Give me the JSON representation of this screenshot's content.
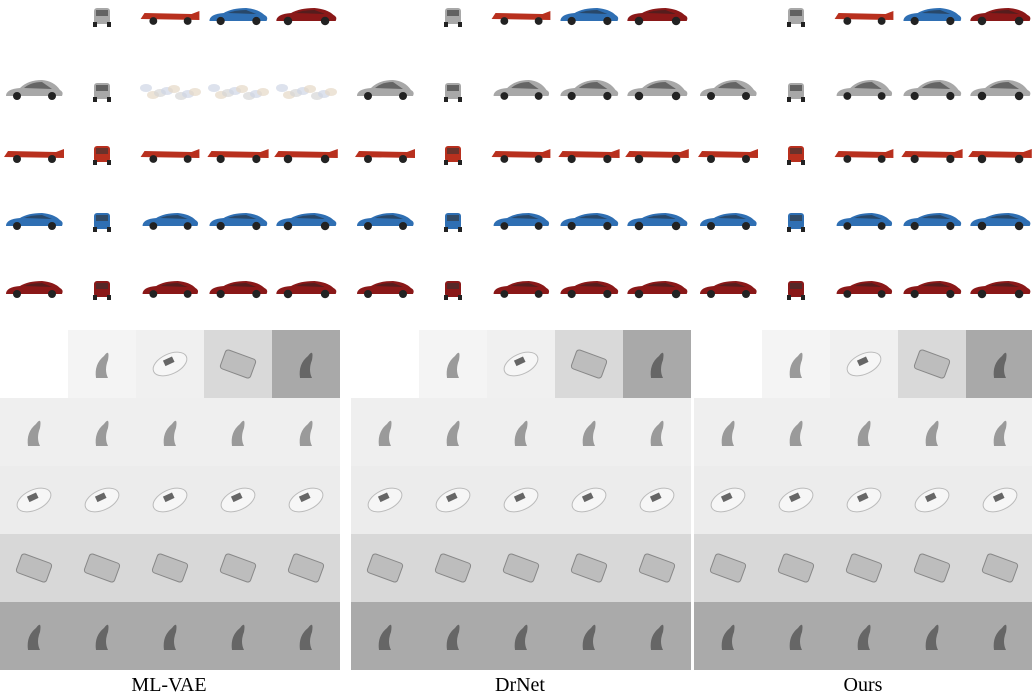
{
  "captions": [
    "ML-VAE",
    "DrNet",
    "Ours"
  ]
}
